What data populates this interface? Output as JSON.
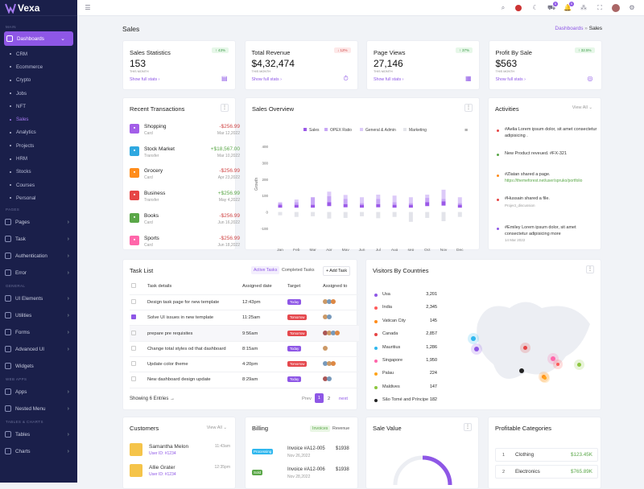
{
  "brand": "Vexa",
  "sidebar": {
    "sec_main": "MAIN",
    "dash": "Dashboards",
    "subs": [
      "CRM",
      "Ecommerce",
      "Crypto",
      "Jobs",
      "NFT",
      "Sales",
      "Analytics",
      "Projects",
      "HRM",
      "Stocks",
      "Courses",
      "Personal"
    ],
    "sec_pages": "PAGES",
    "pages": [
      "Pages",
      "Task",
      "Authentication",
      "Error"
    ],
    "sec_general": "GENERAL",
    "general": [
      "UI Elements",
      "Utilities",
      "Forms",
      "Advanced UI",
      "Widgets"
    ],
    "sec_web": "WEB APPS",
    "web": [
      "Apps",
      "Nested Menu"
    ],
    "sec_tables": "TABLES & CHARTS",
    "tables": [
      "Tables",
      "Charts"
    ]
  },
  "page": {
    "title": "Sales",
    "crumb": "Dashboards",
    "crumb_sep": "»",
    "crumb_cur": "Sales"
  },
  "topbar": {
    "bell_count": "5",
    "cart_count": "5"
  },
  "stats": [
    {
      "label": "Sales Statistics",
      "value": "153",
      "period": "THIS MONTH",
      "link": "Show full stats ›",
      "change": "↑ 43%"
    },
    {
      "label": "Total Revenue",
      "value": "$4,32,474",
      "period": "THIS MONTH",
      "link": "Show full stats ›",
      "change": "↓ 12%"
    },
    {
      "label": "Page Views",
      "value": "27,146",
      "period": "THIS MONTH",
      "link": "Show full stats ›",
      "change": "↑ 37%"
    },
    {
      "label": "Profit By Sale",
      "value": "$563",
      "period": "THIS MONTH",
      "link": "Show full stats ›",
      "change": "↑ 32.5%"
    }
  ],
  "transactions": {
    "title": "Recent Transactions",
    "items": [
      {
        "name": "Shopping",
        "type": "Card",
        "amount": "-$256.99",
        "date": "Mar 12,2022"
      },
      {
        "name": "Stock Market",
        "type": "Transfer",
        "amount": "+$18,567.00",
        "date": "Mar 10,2022"
      },
      {
        "name": "Grocery",
        "type": "Card",
        "amount": "-$256.99",
        "date": "Apr 23,2022"
      },
      {
        "name": "Business",
        "type": "Transfer",
        "amount": "+$256.99",
        "date": "May 4,2022"
      },
      {
        "name": "Books",
        "type": "Card",
        "amount": "-$256.99",
        "date": "Jun 16,2022"
      },
      {
        "name": "Sports",
        "type": "Card",
        "amount": "-$256.99",
        "date": "Jun 18,2022"
      }
    ]
  },
  "overview": {
    "title": "Sales Overview",
    "legend": [
      "Sales",
      "OPEX Ratio",
      "General & Admin",
      "Marketing"
    ],
    "ylabel": "Growth"
  },
  "chart_data": {
    "type": "bar",
    "title": "Sales Overview",
    "ylabel": "Growth",
    "categories": [
      "Jan",
      "Feb",
      "Mar",
      "Apr",
      "May",
      "Jun",
      "Jul",
      "Aug",
      "sep",
      "Oct",
      "Nov",
      "Dec"
    ],
    "yticks": [
      "400",
      "300",
      "200",
      "100",
      "0",
      "-100"
    ],
    "ylim": [
      -100,
      400
    ],
    "series": [
      {
        "name": "Sales",
        "values": [
          44,
          44,
          44,
          60,
          48,
          44,
          48,
          44,
          44,
          60,
          65,
          44
        ]
      },
      {
        "name": "OPEX Ratio",
        "values": [
          54,
          60,
          90,
          96,
          80,
          54,
          80,
          60,
          54,
          86,
          80,
          54
        ]
      },
      {
        "name": "General & Admin",
        "values": [
          60,
          76,
          86,
          124,
          104,
          90,
          106,
          100,
          90,
          106,
          136,
          90
        ]
      },
      {
        "name": "Marketing",
        "values": [
          -20,
          -30,
          -26,
          -40,
          -36,
          -26,
          -38,
          -30,
          -60,
          -36,
          -56,
          -30
        ]
      }
    ]
  },
  "activities": {
    "title": "Activities",
    "viewall": "View All ⌄",
    "items": [
      {
        "text": "#Aelia Lorem ipsum dolor, sit amet consectetur adipisicing .",
        "link": "",
        "time": ""
      },
      {
        "text": "New Product reveued. #FX-321",
        "link": "",
        "time": ""
      },
      {
        "text": "#Zlatan shared a page.",
        "link": "https://themeforest.net/user/spruko/portfolio",
        "time": ""
      },
      {
        "text": "#Hussain shared a file.",
        "link": "",
        "time": "Project_discussion"
      },
      {
        "text": "#Emiley Lorem ipsum dolor, sit amet consectetur adipisicing more",
        "link": "",
        "time": "14 Mar 2022"
      }
    ]
  },
  "tasks": {
    "title": "Task List",
    "tab1": "Active Tasks",
    "tab2": "Completed Tasks",
    "add": "+ Add Task",
    "headers": [
      "Task details",
      "Assigned date",
      "Target",
      "Assigned to"
    ],
    "rows": [
      {
        "task": "Design task page for new template",
        "date": "12:43pm",
        "target": "Today"
      },
      {
        "task": "Solve UI issues in new template",
        "date": "11:25am",
        "target": "Tomorrow"
      },
      {
        "task": "prepare pre requisites",
        "date": "9:56am",
        "target": "Tomorrow"
      },
      {
        "task": "Change total styles od that dashboard",
        "date": "8:15am",
        "target": "Today"
      },
      {
        "task": "Update color theme",
        "date": "4:20pm",
        "target": "Tomorrow"
      },
      {
        "task": "New dashboard design update",
        "date": "8:29am",
        "target": "Today"
      }
    ],
    "showing": "Showing 6 Entries →",
    "prev": "Prev",
    "p1": "1",
    "p2": "2",
    "next": "next"
  },
  "visitors": {
    "title": "Visitors By Countries",
    "items": [
      {
        "c": "Usa",
        "v": "3,201",
        "col": "#8e57e6"
      },
      {
        "c": "India",
        "v": "2,345",
        "col": "#ff5a5a"
      },
      {
        "c": "Vatican City",
        "v": "145",
        "col": "#ff8c1a"
      },
      {
        "c": "Canada",
        "v": "2,857",
        "col": "#e64545"
      },
      {
        "c": "Mauritius",
        "v": "1,286",
        "col": "#2fb7ee"
      },
      {
        "c": "Singapore",
        "v": "1,950",
        "col": "#ff66aa"
      },
      {
        "c": "Palau",
        "v": "224",
        "col": "#ffa41a"
      },
      {
        "c": "Maldives",
        "v": "147",
        "col": "#8dc63f"
      },
      {
        "c": "São Tomé and Príncipe",
        "v": "182",
        "col": "#222"
      }
    ]
  },
  "customers": {
    "title": "Customers",
    "viewall": "View All ⌄",
    "items": [
      {
        "name": "Samantha Melon",
        "id": "User ID: #1234",
        "time": "11:43am"
      },
      {
        "name": "Allie Grater",
        "id": "User ID: #1234",
        "time": "12:35pm"
      }
    ]
  },
  "billing": {
    "title": "Billing",
    "tab1": "Invoices",
    "tab2": "Revenue",
    "items": [
      {
        "status": "Processing",
        "inv": "Invoice #A12-005",
        "amt": "$1938",
        "date": "Nov 26,2022"
      },
      {
        "status": "Sold",
        "inv": "Invoice #A12-006",
        "amt": "$1938",
        "date": "Nov 28,2022"
      }
    ]
  },
  "salevalue": {
    "title": "Sale Value"
  },
  "profitable": {
    "title": "Profitable Categories",
    "items": [
      {
        "n": "1",
        "name": "Clothing",
        "v": "$123.45K"
      },
      {
        "n": "2",
        "name": "Electronics",
        "v": "$765.89K"
      }
    ]
  }
}
